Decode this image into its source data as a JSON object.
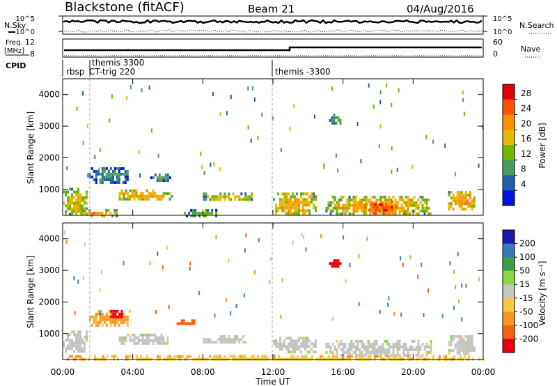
{
  "header": {
    "station": "Blackstone (fitACF)",
    "beam": "Beam 21",
    "date": "04/Aug/2016"
  },
  "strip_labels": {
    "nsky": "N.Sky",
    "nsearch": "N.Search",
    "freq_line1": "Freq.",
    "freq_line2": "[MHz]",
    "nave": "Nave",
    "cpid": "CPID",
    "noise_ticks_left": [
      "10^5",
      "10^0"
    ],
    "noise_ticks_right": [
      "10^5",
      "10^0"
    ],
    "freq_ticks": [
      "12",
      "8"
    ],
    "nave_ticks": [
      "60",
      "0"
    ]
  },
  "cpid_labels": [
    "rbsp",
    "themis 3300",
    "CT-trig 220",
    "themis -3300"
  ],
  "axes": {
    "ylabel": "Slant Range [km]",
    "xlabel": "Time UT",
    "x_ticks": [
      "00:00",
      "04:00",
      "08:00",
      "12:00",
      "16:00",
      "20:00",
      "00:00"
    ],
    "y_ticks": [
      "1000",
      "2000",
      "3000",
      "4000"
    ]
  },
  "colorbars": {
    "power": {
      "label": "Power [dB]",
      "ticks": [
        "28",
        "24",
        "20",
        "16",
        "12",
        "8",
        "4"
      ],
      "colors": [
        "#e00000",
        "#ff5000",
        "#ff9000",
        "#e8b800",
        "#70b800",
        "#4a9a60",
        "#2060a8",
        "#0014e0"
      ]
    },
    "velocity": {
      "label": "Velocity [m s⁻¹]",
      "ticks": [
        "200",
        "100",
        "50",
        "15",
        "-15",
        "-50",
        "-100",
        "-200"
      ],
      "colors": [
        "#1a1ab0",
        "#3a78b8",
        "#3ca048",
        "#8cd840",
        "#c4c4c0",
        "#f8c840",
        "#f89820",
        "#f86010",
        "#e80010"
      ]
    }
  },
  "chart_data": [
    {
      "type": "heatmap",
      "name": "Power",
      "xlabel": "Time UT",
      "ylabel": "Slant Range [km]",
      "xlim": [
        0,
        24
      ],
      "ylim": [
        180,
        4500
      ],
      "units": "dB",
      "regions": [
        {
          "t": [
            0.0,
            1.4
          ],
          "r": [
            200,
            1050
          ],
          "value": 18
        },
        {
          "t": [
            1.0,
            3.2
          ],
          "r": [
            200,
            380
          ],
          "value": 22
        },
        {
          "t": [
            1.5,
            3.8
          ],
          "r": [
            1250,
            1700
          ],
          "value": 10
        },
        {
          "t": [
            3.2,
            6.2
          ],
          "r": [
            650,
            1000
          ],
          "value": 20
        },
        {
          "t": [
            5.0,
            6.2
          ],
          "r": [
            1300,
            1500
          ],
          "value": 10
        },
        {
          "t": [
            6.8,
            9.0
          ],
          "r": [
            200,
            380
          ],
          "value": 14
        },
        {
          "t": [
            8.0,
            10.8
          ],
          "r": [
            650,
            900
          ],
          "value": 18
        },
        {
          "t": [
            12.0,
            14.5
          ],
          "r": [
            200,
            900
          ],
          "value": 20
        },
        {
          "t": [
            15.2,
            15.9
          ],
          "r": [
            3100,
            3400
          ],
          "value": 12
        },
        {
          "t": [
            15.0,
            21.0
          ],
          "r": [
            200,
            800
          ],
          "value": 20
        },
        {
          "t": [
            17.2,
            19.0
          ],
          "r": [
            250,
            650
          ],
          "value": 28
        },
        {
          "t": [
            22.0,
            23.5
          ],
          "r": [
            350,
            950
          ],
          "value": 22
        }
      ]
    },
    {
      "type": "heatmap",
      "name": "Velocity",
      "xlabel": "Time UT",
      "ylabel": "Slant Range [km]",
      "xlim": [
        0,
        24
      ],
      "ylim": [
        180,
        4500
      ],
      "units": "m s-1",
      "regions": [
        {
          "t": [
            0.0,
            1.4
          ],
          "r": [
            400,
            1100
          ],
          "value": 0
        },
        {
          "t": [
            1.5,
            3.8
          ],
          "r": [
            1250,
            1750
          ],
          "value": -60
        },
        {
          "t": [
            2.6,
            3.4
          ],
          "r": [
            1500,
            1750
          ],
          "value": -250
        },
        {
          "t": [
            3.2,
            6.0
          ],
          "r": [
            650,
            1000
          ],
          "value": 0
        },
        {
          "t": [
            6.5,
            7.5
          ],
          "r": [
            1350,
            1450
          ],
          "value": -150
        },
        {
          "t": [
            8.0,
            10.5
          ],
          "r": [
            700,
            950
          ],
          "value": 0
        },
        {
          "t": [
            12.0,
            14.5
          ],
          "r": [
            450,
            900
          ],
          "value": 0
        },
        {
          "t": [
            15.2,
            15.9
          ],
          "r": [
            3100,
            3350
          ],
          "value": -250
        },
        {
          "t": [
            15.0,
            21.0
          ],
          "r": [
            300,
            800
          ],
          "value": 0
        },
        {
          "t": [
            22.0,
            23.5
          ],
          "r": [
            350,
            950
          ],
          "value": 0
        },
        {
          "t": [
            0.0,
            24.0
          ],
          "r": [
            180,
            320
          ],
          "value": -40
        }
      ]
    }
  ]
}
